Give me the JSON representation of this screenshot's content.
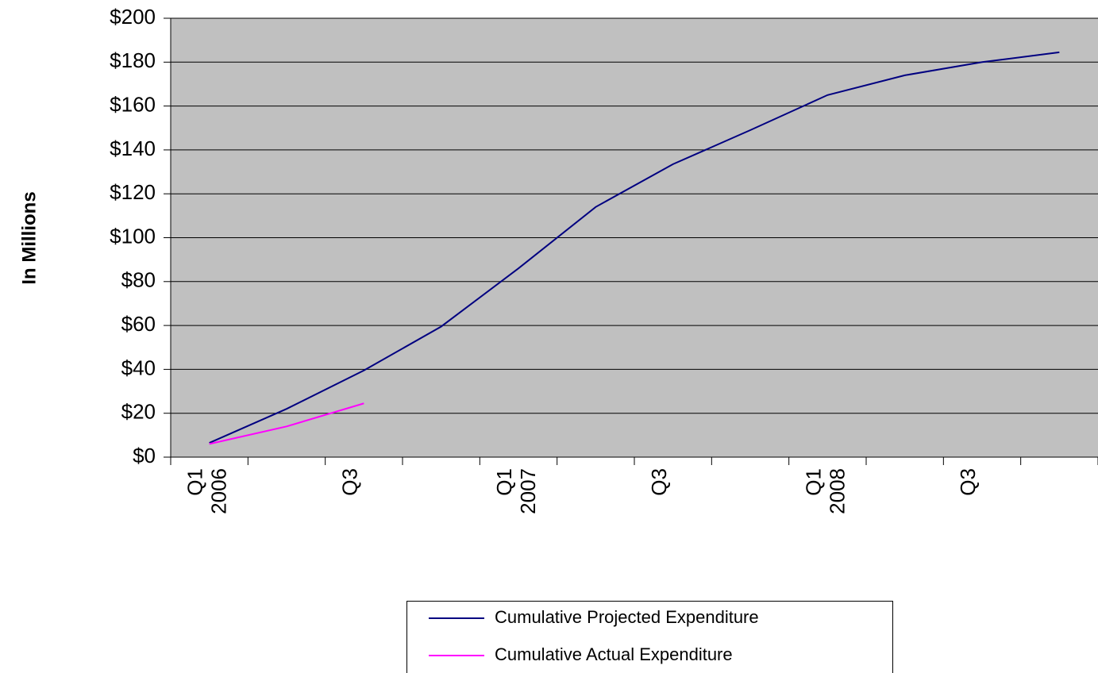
{
  "chart_data": {
    "type": "line",
    "y_label": "In Millions",
    "categories": [
      "Q1 2006",
      null,
      "Q3",
      null,
      "Q1 2007",
      null,
      "Q3",
      null,
      "Q1 2008",
      null,
      "Q3",
      null
    ],
    "series": [
      {
        "name": "Cumulative Projected Expenditure",
        "color": "#000080",
        "values": [
          6.5,
          22,
          39.5,
          59.5,
          86,
          114,
          133.5,
          149,
          165,
          174,
          180,
          184.5
        ]
      },
      {
        "name": "Cumulative Actual Expenditure",
        "color": "#ff00ff",
        "values": [
          6,
          14,
          24.5,
          null,
          null,
          null,
          null,
          null,
          null,
          null,
          null,
          null
        ]
      }
    ],
    "ylim": [
      0,
      200
    ],
    "yticks": [
      {
        "value": 0,
        "label": "$0"
      },
      {
        "value": 20,
        "label": "$20"
      },
      {
        "value": 40,
        "label": "$40"
      },
      {
        "value": 60,
        "label": "$60"
      },
      {
        "value": 80,
        "label": "$80"
      },
      {
        "value": 100,
        "label": "$100"
      },
      {
        "value": 120,
        "label": "$120"
      },
      {
        "value": 140,
        "label": "$140"
      },
      {
        "value": 160,
        "label": "$160"
      },
      {
        "value": 180,
        "label": "$180"
      },
      {
        "value": 200,
        "label": "$200"
      }
    ],
    "grid": true,
    "plot_background": "#c0c0c0",
    "legend": "bottom"
  }
}
